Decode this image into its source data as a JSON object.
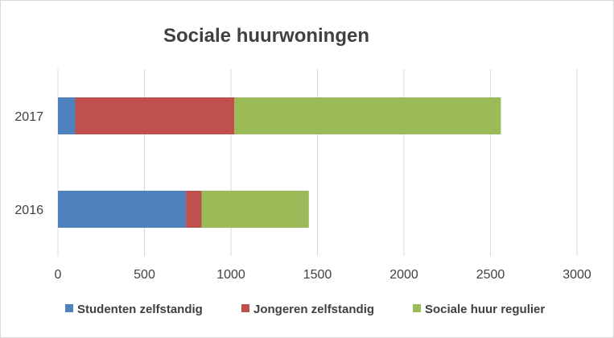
{
  "chart_data": {
    "type": "bar",
    "orientation": "horizontal",
    "stacked": true,
    "title": "Sociale huurwoningen",
    "xlabel": "",
    "ylabel": "",
    "categories": [
      "2016",
      "2017"
    ],
    "xlim": [
      0,
      3000
    ],
    "xticks": [
      "0",
      "500",
      "1000",
      "1500",
      "2000",
      "2500",
      "3000"
    ],
    "grid": true,
    "legend_position": "bottom",
    "series": [
      {
        "name": "Studenten zelfstandig",
        "color": "#4f81bd",
        "values": [
          740,
          100
        ]
      },
      {
        "name": "Jongeren zelfstandig",
        "color": "#c0504d",
        "values": [
          90,
          920
        ]
      },
      {
        "name": "Sociale huur regulier",
        "color": "#9bbb59",
        "values": [
          620,
          1540
        ]
      }
    ]
  }
}
